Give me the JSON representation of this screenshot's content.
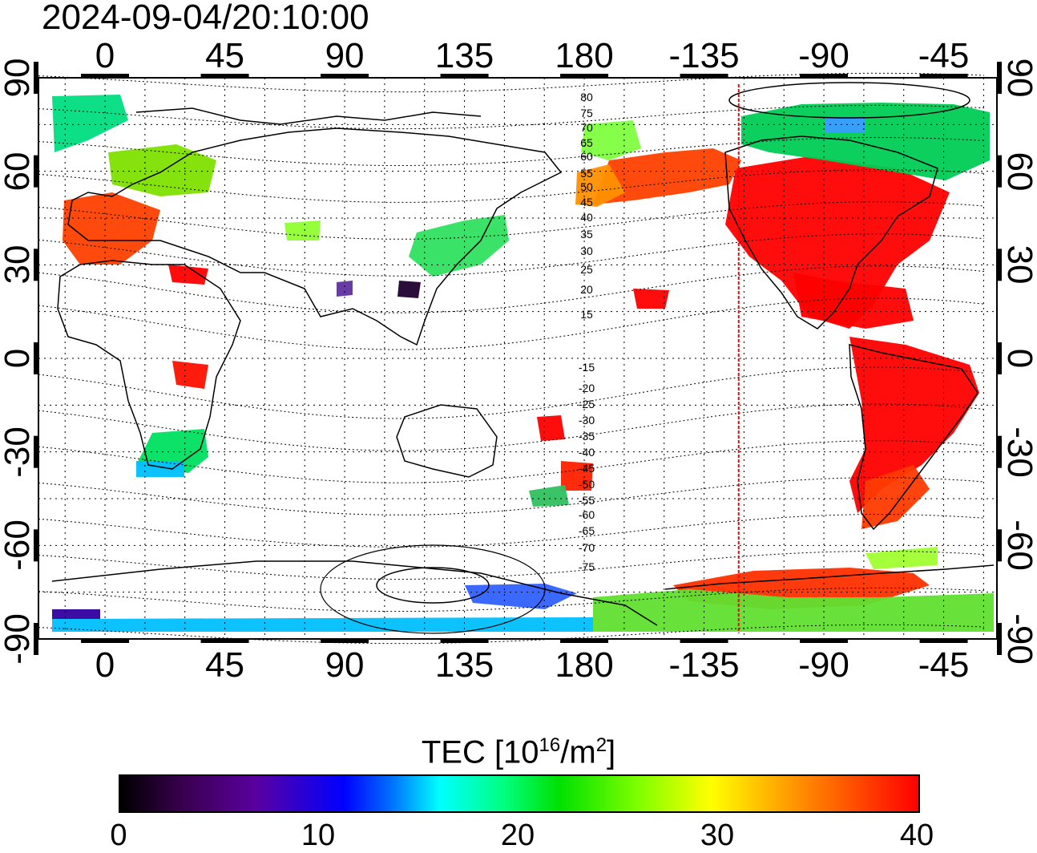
{
  "title": {
    "timestamp": "2024-09-04/20:10:00"
  },
  "map": {
    "projection": "equirectangular",
    "lon_min": -25,
    "lon_max": 335,
    "lat_min": -90,
    "lat_max": 90,
    "top_lon_labels": [
      "0",
      "45",
      "90",
      "135",
      "180",
      "-135",
      "-90",
      "-45"
    ],
    "bottom_lon_labels": [
      "0",
      "45",
      "90",
      "135",
      "180",
      "-135",
      "-90",
      "-45"
    ],
    "lat_labels": [
      "90",
      "60",
      "30",
      "0",
      "-30",
      "-60",
      "-90"
    ],
    "grid": "dotted every 15 degrees",
    "terminator_lon": -122,
    "contour_labels": [
      "80",
      "75",
      "70",
      "65",
      "60",
      "55",
      "50",
      "45",
      "40",
      "35",
      "30",
      "25",
      "20",
      "15",
      "-15",
      "-20",
      "-25",
      "-30",
      "-35",
      "-40",
      "-45",
      "-50",
      "-55",
      "-60",
      "-65",
      "-70",
      "-75"
    ],
    "colors": {
      "high": "#ff0000",
      "mid": "#ffff00",
      "low": "#00ff00",
      "lowest": "#0000ff",
      "terminator": "#ff0000"
    }
  },
  "colorbar": {
    "title_main": "TEC  [10",
    "title_exp1": "16",
    "title_mid": "/m",
    "title_exp2": "2",
    "title_end": "]",
    "min": 0,
    "max": 40,
    "tick_labels": [
      "0",
      "10",
      "20",
      "30",
      "40"
    ]
  }
}
